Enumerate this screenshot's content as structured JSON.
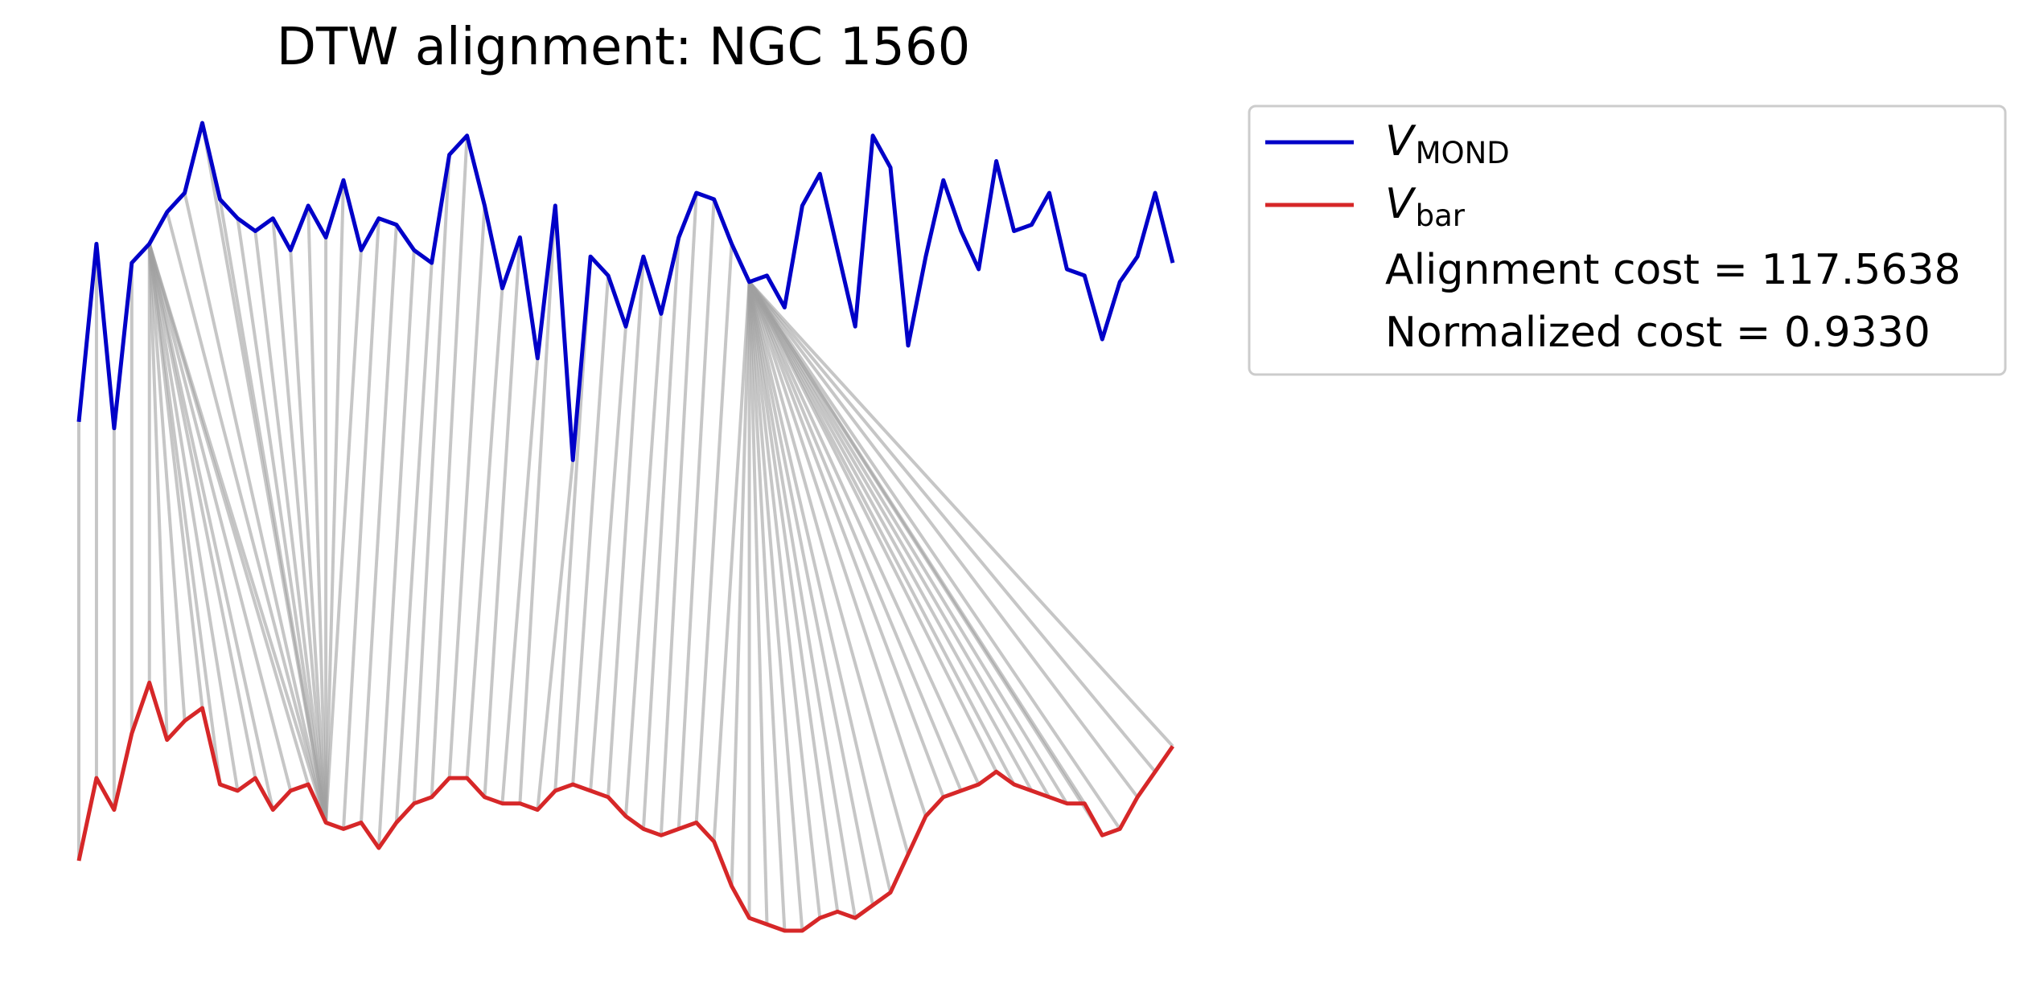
{
  "chart_data": {
    "type": "line",
    "title": "DTW alignment: NGC 1560",
    "legend_position": "outside-upper-right",
    "series": [
      {
        "name": "V_MOND",
        "label_symbol": "V",
        "label_subscript": "MOND",
        "color": "#0000c8",
        "values": [
          -4.5,
          -1.7,
          -4.6,
          -2.0,
          -1.7,
          -1.2,
          -0.9,
          0.2,
          -1.0,
          -1.3,
          -1.5,
          -1.3,
          -1.8,
          -1.1,
          -1.6,
          -0.7,
          -1.8,
          -1.3,
          -1.4,
          -1.8,
          -2.0,
          -0.3,
          0.0,
          -1.1,
          -2.4,
          -1.6,
          -3.5,
          -1.1,
          -5.1,
          -1.9,
          -2.2,
          -3.0,
          -1.9,
          -2.8,
          -1.6,
          -0.9,
          -1.0,
          -1.7,
          -2.3,
          -2.2,
          -2.7,
          -1.1,
          -0.6,
          -1.8,
          -3.0,
          0.0,
          -0.5,
          -3.3,
          -1.9,
          -0.7,
          -1.5,
          -2.1,
          -0.4,
          -1.5,
          -1.4,
          -0.9,
          -2.1,
          -2.2,
          -3.2,
          -2.3,
          -1.9,
          -0.9,
          -2.0
        ],
        "x_range": [
          0,
          62
        ]
      },
      {
        "name": "V_bar",
        "label_symbol": "V",
        "label_subscript": "bar",
        "color": "#d62728",
        "values": [
          -11.4,
          -10.1,
          -10.6,
          -9.4,
          -8.6,
          -9.5,
          -9.2,
          -9.0,
          -10.2,
          -10.3,
          -10.1,
          -10.6,
          -10.3,
          -10.2,
          -10.8,
          -10.9,
          -10.8,
          -11.2,
          -10.8,
          -10.5,
          -10.4,
          -10.1,
          -10.1,
          -10.4,
          -10.5,
          -10.5,
          -10.6,
          -10.3,
          -10.2,
          -10.3,
          -10.4,
          -10.7,
          -10.9,
          -11.0,
          -10.9,
          -10.8,
          -11.1,
          -11.8,
          -12.3,
          -12.4,
          -12.5,
          -12.5,
          -12.3,
          -12.2,
          -12.3,
          -12.1,
          -11.9,
          -11.3,
          -10.7,
          -10.4,
          -10.3,
          -10.2,
          -10.0,
          -10.2,
          -10.3,
          -10.4,
          -10.5,
          -10.5,
          -11.0,
          -10.9,
          -10.4,
          -10.0,
          -9.6
        ],
        "x_range": [
          0,
          62
        ]
      }
    ],
    "alignment": {
      "connector_color": "#a0a0a0",
      "path": [
        [
          0,
          0
        ],
        [
          1,
          1
        ],
        [
          2,
          2
        ],
        [
          3,
          3
        ],
        [
          4,
          4
        ],
        [
          4,
          5
        ],
        [
          4,
          6
        ],
        [
          4,
          7
        ],
        [
          4,
          8
        ],
        [
          4,
          9
        ],
        [
          4,
          10
        ],
        [
          4,
          11
        ],
        [
          4,
          12
        ],
        [
          4,
          13
        ],
        [
          4,
          14
        ],
        [
          5,
          14
        ],
        [
          6,
          14
        ],
        [
          7,
          14
        ],
        [
          8,
          14
        ],
        [
          9,
          14
        ],
        [
          10,
          14
        ],
        [
          11,
          14
        ],
        [
          12,
          14
        ],
        [
          13,
          14
        ],
        [
          14,
          14
        ],
        [
          15,
          14
        ],
        [
          16,
          14
        ],
        [
          17,
          15
        ],
        [
          18,
          16
        ],
        [
          19,
          17
        ],
        [
          20,
          18
        ],
        [
          21,
          19
        ],
        [
          22,
          20
        ],
        [
          23,
          21
        ],
        [
          24,
          22
        ],
        [
          25,
          23
        ],
        [
          26,
          24
        ],
        [
          27,
          25
        ],
        [
          28,
          26
        ],
        [
          29,
          27
        ],
        [
          30,
          28
        ],
        [
          31,
          29
        ],
        [
          32,
          30
        ],
        [
          33,
          31
        ],
        [
          34,
          32
        ],
        [
          35,
          33
        ],
        [
          36,
          34
        ],
        [
          37,
          35
        ],
        [
          38,
          36
        ],
        [
          38,
          37
        ],
        [
          38,
          38
        ],
        [
          38,
          39
        ],
        [
          38,
          40
        ],
        [
          38,
          41
        ],
        [
          38,
          42
        ],
        [
          38,
          43
        ],
        [
          38,
          44
        ],
        [
          38,
          45
        ],
        [
          38,
          46
        ],
        [
          38,
          47
        ],
        [
          38,
          48
        ],
        [
          38,
          49
        ],
        [
          38,
          50
        ],
        [
          38,
          51
        ],
        [
          38,
          52
        ],
        [
          38,
          53
        ],
        [
          38,
          54
        ],
        [
          38,
          55
        ],
        [
          38,
          56
        ],
        [
          38,
          57
        ],
        [
          38,
          58
        ],
        [
          38,
          59
        ],
        [
          38,
          60
        ],
        [
          38,
          61
        ],
        [
          38,
          62
        ]
      ]
    },
    "legend": [
      {
        "key": "vmond",
        "type": "line",
        "symbol": "V",
        "subscript": "MOND",
        "color": "#0000c8"
      },
      {
        "key": "vbar",
        "type": "line",
        "symbol": "V",
        "subscript": "bar",
        "color": "#d62728"
      },
      {
        "key": "cost",
        "type": "text",
        "text": "Alignment cost = 117.5638"
      },
      {
        "key": "ncost",
        "type": "text",
        "text": "Normalized cost = 0.9330"
      }
    ],
    "axes_visible": false,
    "grid": false
  }
}
